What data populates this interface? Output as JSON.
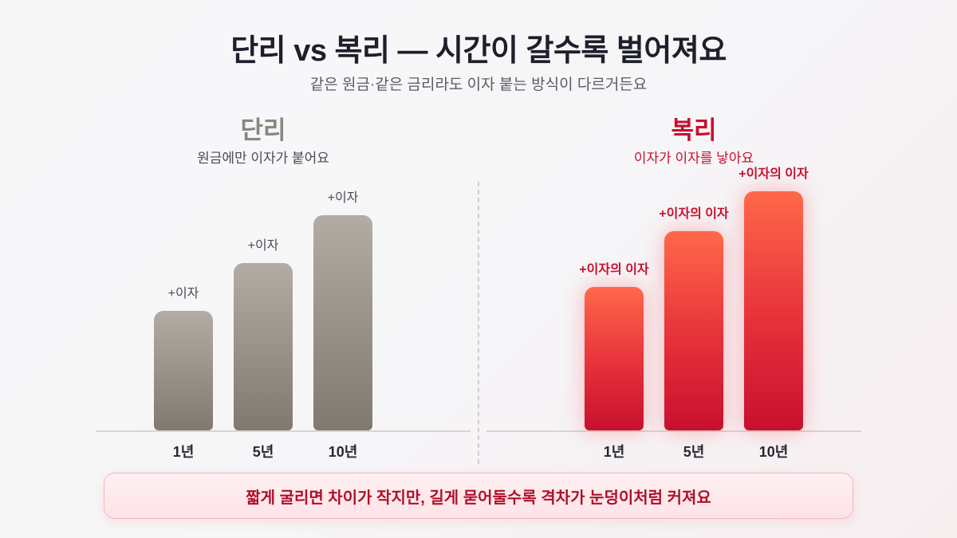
{
  "header": {
    "title": "단리 vs 복리 — 시간이 갈수록 벌어져요",
    "subtitle": "같은 원금·같은 금리라도 이자 붙는 방식이 다르거든요"
  },
  "chart_data": [
    {
      "type": "bar",
      "title": "단리",
      "subtitle": "원금에만 이자가 붙어요",
      "categories": [
        "1년",
        "5년",
        "10년"
      ],
      "values": [
        150,
        210,
        270
      ],
      "data_labels": [
        "+이자",
        "+이자",
        "+이자"
      ],
      "ylim": [
        0,
        320
      ],
      "colors": {
        "top": "#b2ada4",
        "bottom": "#7f7a70",
        "title": "#8a867f"
      }
    },
    {
      "type": "bar",
      "title": "복리",
      "subtitle": "이자가 이자를 낳아요",
      "categories": [
        "1년",
        "5년",
        "10년"
      ],
      "values": [
        180,
        250,
        300
      ],
      "data_labels": [
        "+이자의 이자",
        "+이자의 이자",
        "+이자의 이자"
      ],
      "ylim": [
        0,
        320
      ],
      "colors": {
        "top": "#ff684a",
        "bottom": "#c8102e",
        "title": "#c8102e"
      }
    }
  ],
  "footer": {
    "note": "짧게 굴리면 차이가 작지만, 길게 묻어둘수록 격차가 눈덩이처럼 커져요"
  }
}
